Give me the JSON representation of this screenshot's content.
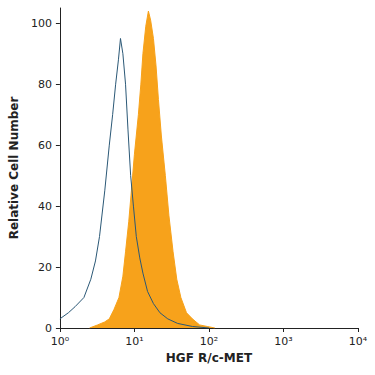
{
  "chart_data": {
    "type": "line",
    "x_label": "HGF R/c-MET",
    "y_label": "Relative Cell Number",
    "log": "x",
    "grid": false,
    "xlim": [
      1,
      10000
    ],
    "xticks": [
      {
        "value": 1,
        "label": "10⁰"
      },
      {
        "value": 10,
        "label": "10¹"
      },
      {
        "value": 100,
        "label": "10²"
      },
      {
        "value": 1000,
        "label": "10³"
      },
      {
        "value": 10000,
        "label": "10⁴"
      }
    ],
    "ylim": [
      0,
      105
    ],
    "yticks": [
      0,
      20,
      40,
      60,
      80,
      100
    ],
    "series": [
      {
        "type": "area",
        "color": "#f7a21b",
        "x": [
          2.5,
          3.2,
          4,
          4.6,
          5.3,
          6.2,
          7,
          7.6,
          8.4,
          9.1,
          10,
          11.3,
          12.2,
          13,
          14.2,
          15.4,
          16.5,
          18,
          19.5,
          21,
          23,
          26,
          29,
          33,
          37,
          42,
          50,
          60,
          75,
          95,
          120
        ],
        "values": [
          0,
          1,
          2,
          3,
          6,
          10,
          17,
          25,
          35,
          45,
          57,
          70,
          80,
          90,
          99,
          104,
          101,
          95,
          86,
          75,
          63,
          50,
          37,
          25,
          16,
          10,
          5,
          3,
          1,
          0.5,
          0
        ]
      },
      {
        "type": "line",
        "color": "#2b5876",
        "x": [
          1,
          1.3,
          1.6,
          2.1,
          2.6,
          3.0,
          3.4,
          4,
          4.6,
          5.1,
          5.6,
          6.1,
          6.5,
          7,
          7.6,
          8.2,
          8.9,
          9.7,
          10.6,
          11.8,
          13,
          15,
          18,
          22,
          28,
          38,
          60,
          100
        ],
        "values": [
          3,
          5,
          7,
          10,
          16,
          22,
          30,
          45,
          60,
          70,
          80,
          88,
          95,
          90,
          80,
          65,
          50,
          40,
          30,
          23,
          18,
          12,
          8,
          5,
          3,
          1.5,
          0.5,
          0
        ]
      }
    ]
  }
}
